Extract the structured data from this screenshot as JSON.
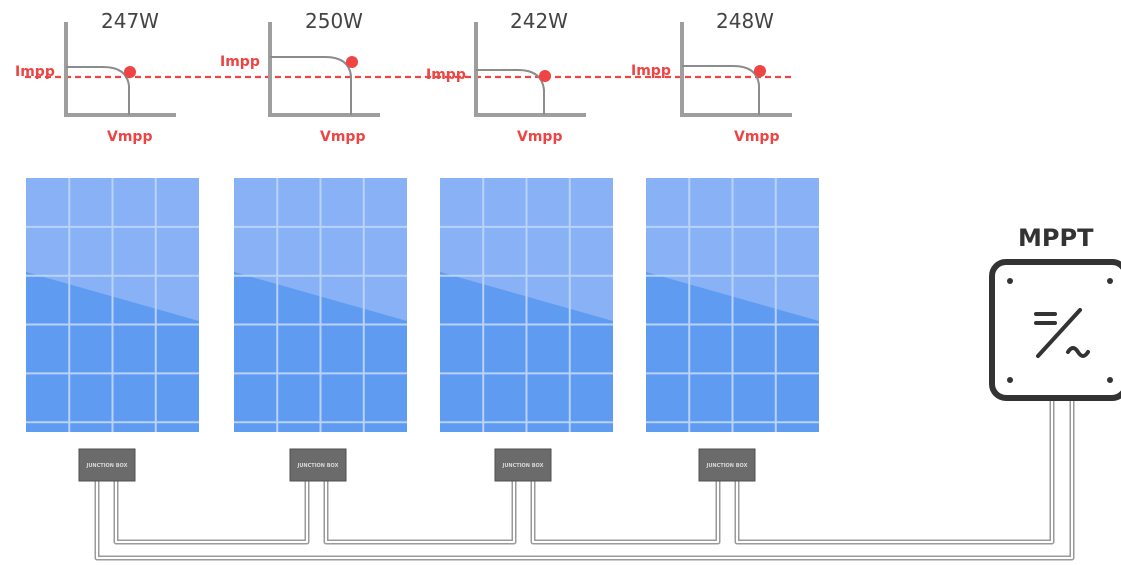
{
  "panels": [
    {
      "id": "p1",
      "power": "247W"
    },
    {
      "id": "p2",
      "power": "250W"
    },
    {
      "id": "p3",
      "power": "242W"
    },
    {
      "id": "p4",
      "power": "248W"
    }
  ],
  "curve_labels": {
    "current": "Impp",
    "voltage": "Vmpp"
  },
  "junction_box_label": "JUNCTION BOX",
  "mppt": {
    "label": "MPPT"
  },
  "colors": {
    "accent": "#ef4444",
    "panel_dark": "#5f9bf0",
    "panel_light": "#88b2f5",
    "grid_line": "#b9d2fa",
    "axis": "#9e9e9e",
    "wire": "#b8b8b8",
    "junction_box": "#6b6b6b",
    "mppt_frame": "#333333"
  }
}
